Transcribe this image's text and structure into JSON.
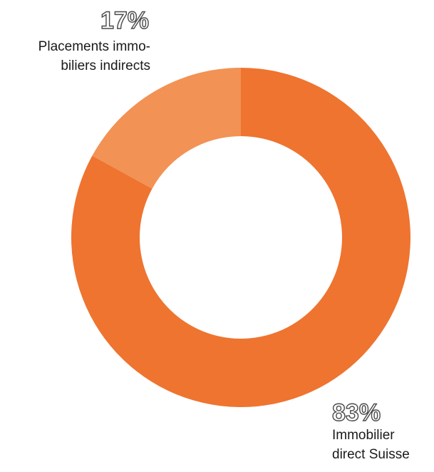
{
  "chart_data": {
    "type": "pie",
    "donut": true,
    "slices": [
      {
        "label_lines": [
          "Immobilier",
          "direct Suisse"
        ],
        "percent_label": "83%",
        "value": 83,
        "color": "#ee7430"
      },
      {
        "label_lines": [
          "Placements immo-",
          "biliers indirects"
        ],
        "percent_label": "17%",
        "value": 17,
        "color": "#f29254"
      }
    ],
    "legend": "none"
  }
}
